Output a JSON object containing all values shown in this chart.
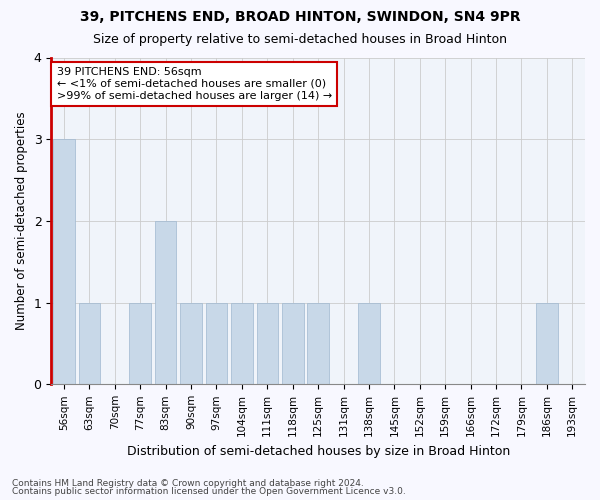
{
  "title1": "39, PITCHENS END, BROAD HINTON, SWINDON, SN4 9PR",
  "title2": "Size of property relative to semi-detached houses in Broad Hinton",
  "xlabel": "Distribution of semi-detached houses by size in Broad Hinton",
  "ylabel": "Number of semi-detached properties",
  "categories": [
    "56sqm",
    "63sqm",
    "70sqm",
    "77sqm",
    "83sqm",
    "90sqm",
    "97sqm",
    "104sqm",
    "111sqm",
    "118sqm",
    "125sqm",
    "131sqm",
    "138sqm",
    "145sqm",
    "152sqm",
    "159sqm",
    "166sqm",
    "172sqm",
    "179sqm",
    "186sqm",
    "193sqm"
  ],
  "values": [
    3,
    1,
    0,
    1,
    2,
    1,
    1,
    1,
    1,
    1,
    1,
    0,
    1,
    0,
    0,
    0,
    0,
    0,
    0,
    1,
    0
  ],
  "bar_color": "#c8d8e8",
  "marker_color": "#cc0000",
  "annotation_line1": "39 PITCHENS END: 56sqm",
  "annotation_line2": "← <1% of semi-detached houses are smaller (0)",
  "annotation_line3": ">99% of semi-detached houses are larger (14) →",
  "ylim": [
    0,
    4
  ],
  "yticks": [
    0,
    1,
    2,
    3,
    4
  ],
  "footer1": "Contains HM Land Registry data © Crown copyright and database right 2024.",
  "footer2": "Contains public sector information licensed under the Open Government Licence v3.0.",
  "bg_color": "#f8f8ff",
  "plot_bg_color": "#f0f4fa"
}
